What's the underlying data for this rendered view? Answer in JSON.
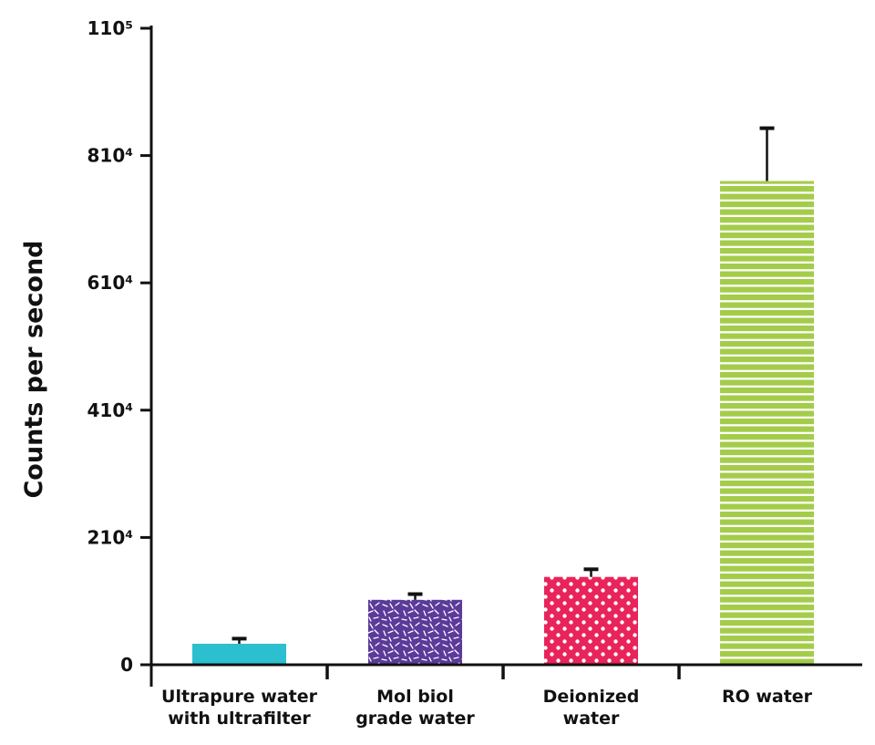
{
  "chart_data": {
    "type": "bar",
    "title": "",
    "xlabel": "",
    "ylabel": "Counts per second",
    "ylim": [
      0,
      100000
    ],
    "y_ticks": [
      {
        "value": 0,
        "label": "0"
      },
      {
        "value": 20000,
        "label": "210⁴"
      },
      {
        "value": 40000,
        "label": "410⁴"
      },
      {
        "value": 60000,
        "label": "610⁴"
      },
      {
        "value": 80000,
        "label": "810⁴"
      },
      {
        "value": 100000,
        "label": "110⁵"
      }
    ],
    "categories": [
      [
        "Ultrapure water",
        "with ultrafilter"
      ],
      [
        "Mol biol",
        "grade water"
      ],
      [
        "Deionized",
        "water"
      ],
      [
        "RO water"
      ]
    ],
    "values": [
      3300,
      10200,
      13800,
      76000
    ],
    "error": [
      800,
      900,
      1200,
      8300
    ],
    "colors": [
      "#2bbfcf",
      "#5b3a9a",
      "#e8245a",
      "#a4cc4a"
    ],
    "patterns": [
      "solid",
      "random-dashes",
      "polka-dots",
      "horizontal-stripes"
    ],
    "grid": false
  }
}
